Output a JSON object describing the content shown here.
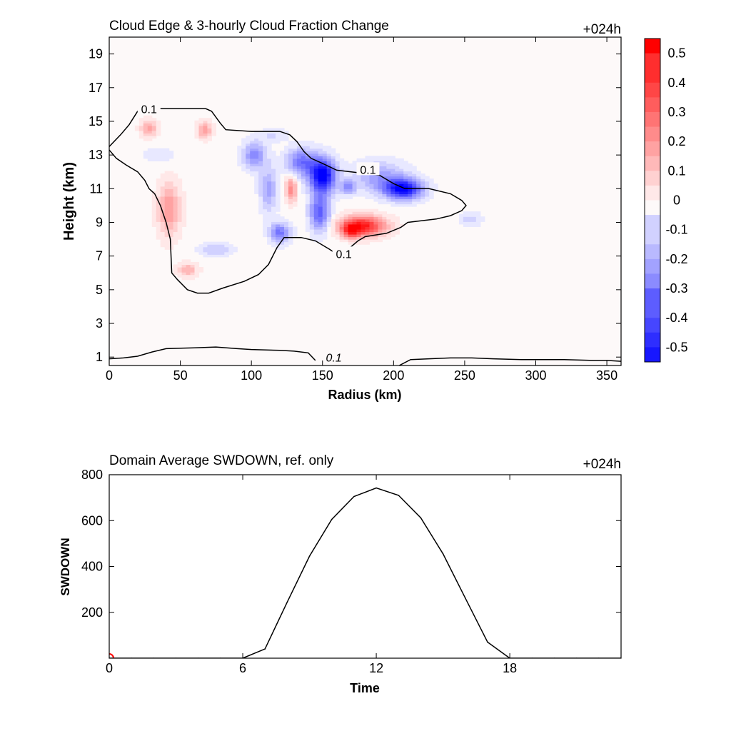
{
  "chart_data": [
    {
      "type": "heatmap",
      "title": "Cloud Edge & 3-hourly Cloud Fraction Change",
      "forecast_label": "+024h",
      "xlabel": "Radius (km)",
      "ylabel": "Height (km)",
      "xlim": [
        0,
        360
      ],
      "ylim": [
        0.5,
        20
      ],
      "xticks": [
        0,
        50,
        100,
        150,
        200,
        250,
        300,
        350
      ],
      "yticks": [
        1,
        3,
        5,
        7,
        9,
        11,
        13,
        15,
        17,
        19
      ],
      "colorbar": {
        "min": -0.55,
        "max": 0.55,
        "step": 0.05,
        "ticks": [
          0.5,
          0.4,
          0.3,
          0.2,
          0.1,
          0,
          -0.1,
          -0.2,
          -0.3,
          -0.4,
          -0.5
        ],
        "colors": {
          "positive": "#ff0000",
          "neutral": "#ffffff",
          "negative": "#0000ff"
        }
      },
      "contour_label": "0.1",
      "cloud_edge_contour": [
        [
          0,
          13.5
        ],
        [
          8,
          14.2
        ],
        [
          14,
          14.8
        ],
        [
          20,
          15.6
        ],
        [
          27,
          15.75
        ],
        [
          40,
          15.75
        ],
        [
          55,
          15.75
        ],
        [
          68,
          15.75
        ],
        [
          72,
          15.6
        ],
        [
          78,
          14.9
        ],
        [
          82,
          14.5
        ],
        [
          100,
          14.4
        ],
        [
          120,
          14.4
        ],
        [
          127,
          14.2
        ],
        [
          132,
          13.8
        ],
        [
          137,
          13.2
        ],
        [
          142,
          12.8
        ],
        [
          150,
          12.5
        ],
        [
          160,
          12.1
        ],
        [
          175,
          11.95
        ],
        [
          190,
          11.8
        ],
        [
          200,
          11.3
        ],
        [
          208,
          11.0
        ],
        [
          225,
          11.0
        ],
        [
          240,
          10.7
        ],
        [
          248,
          10.3
        ],
        [
          251,
          10.0
        ],
        [
          248,
          9.7
        ],
        [
          240,
          9.4
        ],
        [
          230,
          9.2
        ],
        [
          220,
          9.1
        ],
        [
          210,
          9.0
        ],
        [
          205,
          8.7
        ],
        [
          195,
          8.35
        ],
        [
          180,
          8.15
        ],
        [
          175,
          7.9
        ],
        [
          168,
          7.4
        ],
        [
          162,
          7.0
        ],
        [
          155,
          7.4
        ],
        [
          145,
          7.9
        ],
        [
          135,
          8.1
        ],
        [
          123,
          8.1
        ],
        [
          118,
          7.5
        ],
        [
          112,
          6.5
        ],
        [
          105,
          5.9
        ],
        [
          95,
          5.5
        ],
        [
          80,
          5.1
        ],
        [
          70,
          4.8
        ],
        [
          62,
          4.8
        ],
        [
          55,
          5.0
        ],
        [
          48,
          5.6
        ],
        [
          44,
          6.0
        ],
        [
          43,
          8.0
        ],
        [
          40,
          9.0
        ],
        [
          36,
          10.0
        ],
        [
          32,
          10.7
        ],
        [
          28,
          11.0
        ],
        [
          25,
          11.5
        ],
        [
          20,
          12.0
        ],
        [
          12,
          12.4
        ],
        [
          5,
          12.8
        ],
        [
          0,
          13.3
        ]
      ],
      "low_contour_left": [
        [
          0,
          0.9
        ],
        [
          10,
          0.95
        ],
        [
          20,
          1.05
        ],
        [
          30,
          1.3
        ],
        [
          40,
          1.5
        ],
        [
          60,
          1.55
        ],
        [
          75,
          1.6
        ],
        [
          90,
          1.5
        ],
        [
          100,
          1.45
        ],
        [
          120,
          1.4
        ],
        [
          130,
          1.35
        ],
        [
          140,
          1.25
        ],
        [
          145,
          0.8
        ]
      ],
      "low_contour_right": [
        [
          204,
          0.5
        ],
        [
          212,
          0.85
        ],
        [
          225,
          0.9
        ],
        [
          240,
          0.95
        ],
        [
          255,
          0.95
        ],
        [
          270,
          0.9
        ],
        [
          290,
          0.85
        ],
        [
          320,
          0.85
        ],
        [
          340,
          0.8
        ],
        [
          350,
          0.8
        ],
        [
          360,
          0.75
        ]
      ],
      "contour_label_positions": [
        [
          28,
          15.7
        ],
        [
          182,
          12.1
        ],
        [
          165,
          7.1
        ],
        [
          158,
          0.95
        ]
      ],
      "anomalies": [
        {
          "r": 150,
          "h": 11.8,
          "sr": 9,
          "sh": 1.0,
          "a": -0.6
        },
        {
          "r": 148,
          "h": 9.6,
          "sr": 7,
          "sh": 1.1,
          "a": -0.35
        },
        {
          "r": 135,
          "h": 12.6,
          "sr": 10,
          "sh": 0.8,
          "a": -0.3
        },
        {
          "r": 207,
          "h": 11.0,
          "sr": 13,
          "sh": 0.6,
          "a": -0.55
        },
        {
          "r": 190,
          "h": 11.7,
          "sr": 18,
          "sh": 0.9,
          "a": -0.2
        },
        {
          "r": 102,
          "h": 13.0,
          "sr": 8,
          "sh": 0.8,
          "a": -0.25
        },
        {
          "r": 112,
          "h": 11.0,
          "sr": 6,
          "sh": 1.3,
          "a": -0.2
        },
        {
          "r": 120,
          "h": 8.4,
          "sr": 7,
          "sh": 0.6,
          "a": -0.3
        },
        {
          "r": 168,
          "h": 11.1,
          "sr": 5,
          "sh": 0.4,
          "a": -0.25
        },
        {
          "r": 178,
          "h": 8.8,
          "sr": 16,
          "sh": 0.6,
          "a": 0.5
        },
        {
          "r": 170,
          "h": 8.5,
          "sr": 6,
          "sh": 0.4,
          "a": 0.3
        },
        {
          "r": 128,
          "h": 11.0,
          "sr": 4,
          "sh": 0.8,
          "a": 0.25
        },
        {
          "r": 28,
          "h": 14.6,
          "sr": 6,
          "sh": 0.5,
          "a": 0.2
        },
        {
          "r": 67,
          "h": 14.5,
          "sr": 5,
          "sh": 0.5,
          "a": 0.22
        },
        {
          "r": 42,
          "h": 9.8,
          "sr": 8,
          "sh": 1.6,
          "a": 0.22
        },
        {
          "r": 55,
          "h": 6.2,
          "sr": 7,
          "sh": 0.4,
          "a": 0.18
        },
        {
          "r": 75,
          "h": 7.4,
          "sr": 12,
          "sh": 0.4,
          "a": -0.12
        },
        {
          "r": 254,
          "h": 9.2,
          "sr": 8,
          "sh": 0.4,
          "a": -0.1
        },
        {
          "r": 115,
          "h": 14.2,
          "sr": 10,
          "sh": 0.4,
          "a": -0.08
        },
        {
          "r": 35,
          "h": 13.0,
          "sr": 12,
          "sh": 0.5,
          "a": -0.06
        }
      ]
    },
    {
      "type": "line",
      "title": "Domain Average SWDOWN, ref. only",
      "forecast_label": "+024h",
      "xlabel": "Time",
      "ylabel": "SWDOWN",
      "xlim": [
        0,
        23
      ],
      "ylim": [
        0,
        800
      ],
      "xticks": [
        0,
        6,
        12,
        18
      ],
      "yticks": [
        200,
        400,
        600,
        800
      ],
      "marker_x": 0,
      "marker_color": "#ff0000",
      "x": [
        0,
        1,
        2,
        3,
        4,
        5,
        6,
        7,
        8,
        9,
        10,
        11,
        12,
        13,
        14,
        15,
        16,
        17,
        18,
        19,
        20,
        21,
        22,
        23
      ],
      "y": [
        0,
        0,
        0,
        0,
        0,
        0,
        0,
        40,
        245,
        445,
        605,
        705,
        742,
        710,
        612,
        455,
        262,
        70,
        0,
        0,
        0,
        0,
        0,
        0
      ]
    }
  ]
}
